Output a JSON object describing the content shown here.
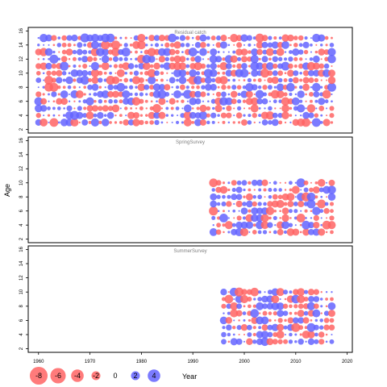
{
  "chart_data": {
    "type": "scatter",
    "subtype": "bubble residual plot",
    "ylabel": "Age",
    "xlabel": "Year",
    "colors": {
      "negative": "#ff6464",
      "positive": "#6464ff"
    },
    "x_ticks": [
      1960,
      1970,
      1980,
      1990,
      2000,
      2010,
      2020
    ],
    "y_ticks": [
      2,
      4,
      6,
      8,
      10,
      12,
      14,
      16
    ],
    "xlim": [
      1958,
      2021
    ],
    "ylim": [
      1.5,
      16.5
    ],
    "panels": [
      {
        "title": "Residual catch",
        "years": [
          1960,
          2017
        ],
        "ages": [
          3,
          15
        ]
      },
      {
        "title": "SpringSurvey",
        "years": [
          1994,
          2017
        ],
        "ages": [
          3,
          10
        ]
      },
      {
        "title": "SummerSurvey",
        "years": [
          1996,
          2017
        ],
        "ages": [
          3,
          10
        ]
      }
    ],
    "legend": {
      "values": [
        -8,
        -6,
        -4,
        -2,
        0,
        2,
        4
      ],
      "labels": [
        "-8",
        "-6",
        "-4",
        "-2",
        "0",
        "2",
        "4"
      ],
      "title": "Year"
    }
  }
}
